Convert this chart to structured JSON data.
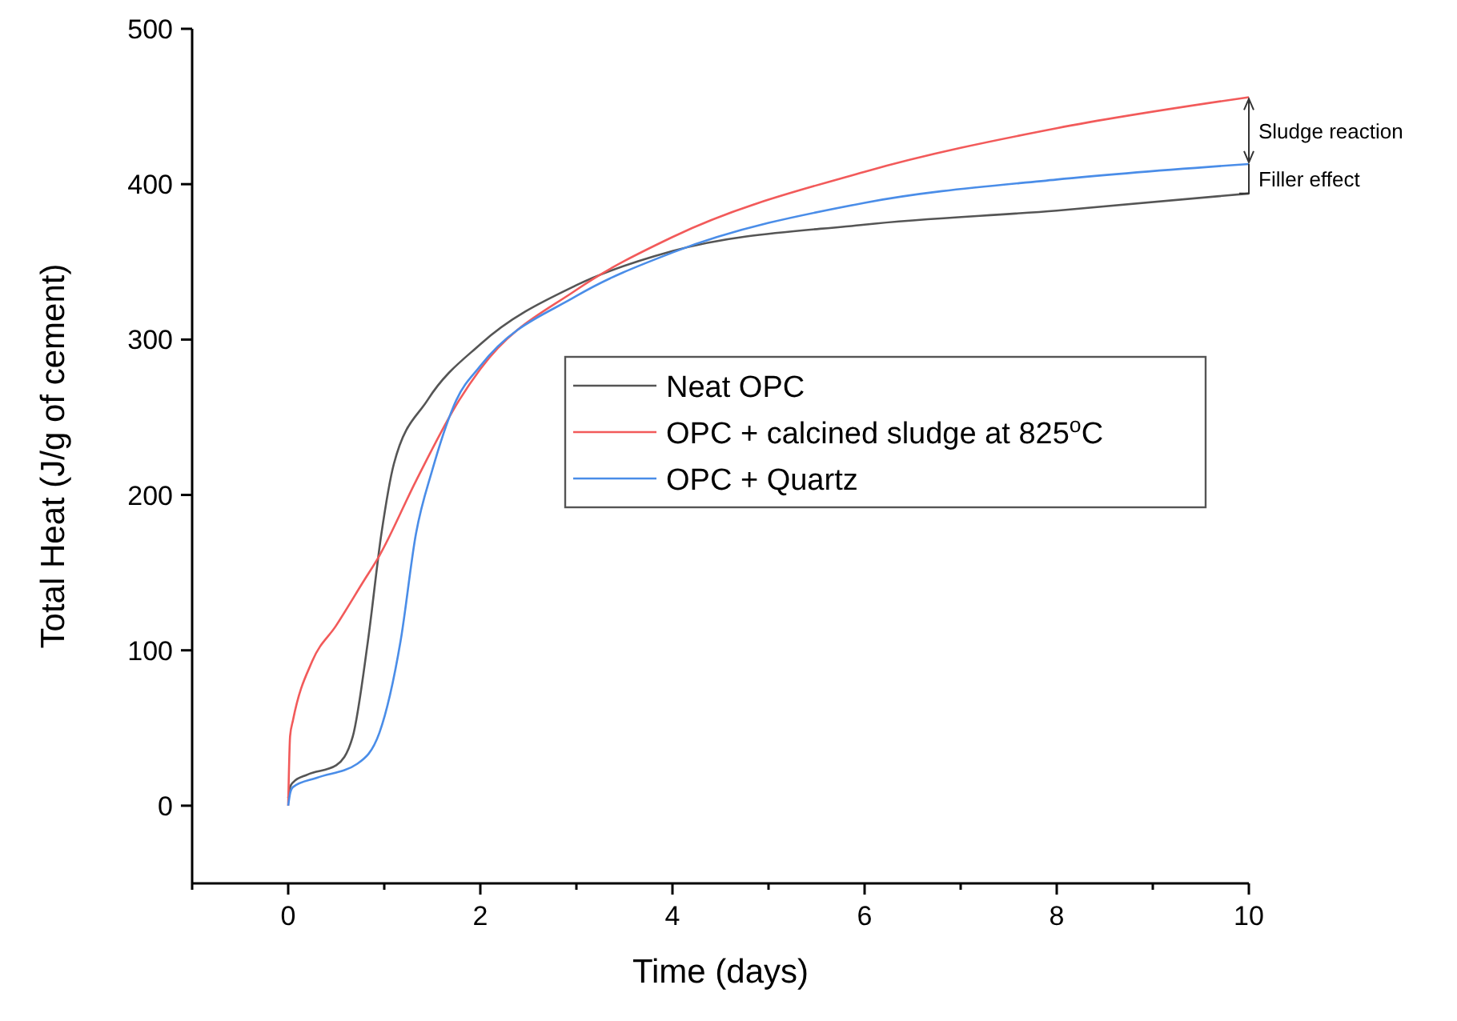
{
  "chart_data": {
    "type": "line",
    "xlabel": "Time (days)",
    "ylabel": "Total Heat (J/g of cement)",
    "xlim": [
      -1,
      10
    ],
    "ylim": [
      -50,
      500
    ],
    "xticks": [
      {
        "value": -1,
        "label": null
      },
      0,
      {
        "value": 1,
        "label": null
      },
      2,
      {
        "value": 3,
        "label": null
      },
      4,
      {
        "value": 5,
        "label": null
      },
      6,
      {
        "value": 7,
        "label": null
      },
      8,
      {
        "value": 9,
        "label": null
      },
      10
    ],
    "yticks": [
      0,
      100,
      200,
      300,
      400,
      500
    ],
    "grid": false,
    "legend": "right",
    "line_style": "solid",
    "marker": "none",
    "series": [
      {
        "name": "Neat OPC",
        "color": "#555555",
        "x": [
          0,
          0.02,
          0.05,
          0.2,
          0.5,
          0.67,
          0.83,
          0.97,
          1.1,
          1.45,
          2,
          3,
          4,
          6,
          8,
          10
        ],
        "values": [
          5,
          12,
          15,
          20,
          26,
          44,
          106,
          175,
          220,
          261,
          297,
          335,
          357,
          374,
          383,
          394
        ]
      },
      {
        "name": "OPC + calcined sludge at 825$^{o}$C",
        "color": "#f25a5a",
        "x": [
          0,
          0.02,
          0.05,
          0.25,
          0.5,
          0.78,
          0.95,
          1.33,
          1.78,
          2,
          3,
          4,
          6,
          8,
          10
        ],
        "values": [
          0,
          45,
          55,
          93,
          116,
          144,
          161,
          209,
          261,
          281,
          332,
          366,
          408,
          436,
          456
        ]
      },
      {
        "name": "OPC + Quartz",
        "color": "#4a8de8",
        "x": [
          0,
          0.02,
          0.05,
          0.3,
          0.72,
          0.95,
          1.17,
          1.33,
          1.5,
          1.75,
          2,
          3,
          4,
          6,
          8,
          10
        ],
        "values": [
          0,
          8,
          12,
          18,
          27,
          47,
          106,
          175,
          216,
          261,
          283,
          328,
          356,
          388,
          403,
          413
        ]
      }
    ],
    "annotations": [
      "Sludge reaction",
      "Filler effect"
    ]
  }
}
